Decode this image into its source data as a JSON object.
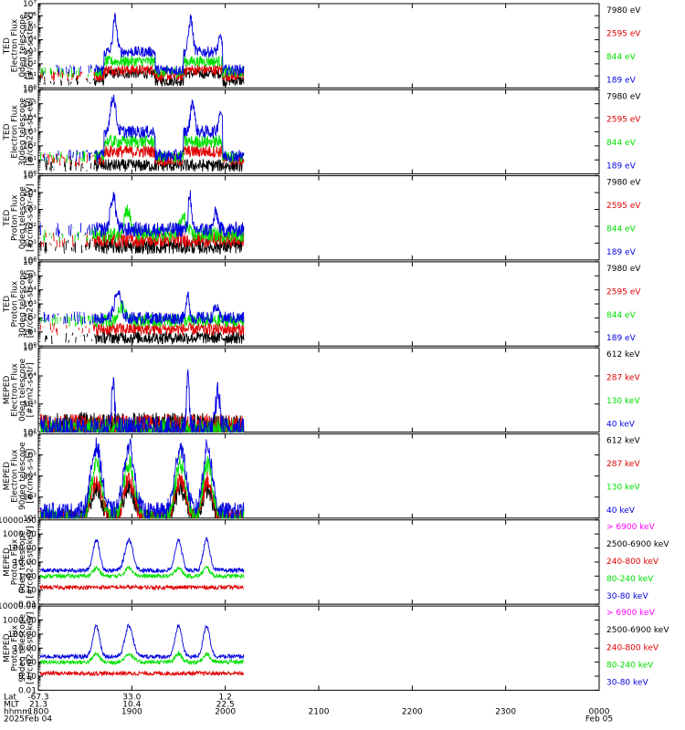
{
  "colors": {
    "black": "#000000",
    "red": "#e00000",
    "green": "#00e000",
    "blue": "#0000e0",
    "magenta": "#ff00ff"
  },
  "chart_data": [
    {
      "type": "line",
      "ylabel": [
        "TED",
        "Electron Flux",
        "0deg telescope",
        "[#/cm2-s-str-eV]"
      ],
      "scale": "log",
      "yticks": [
        "10⁰",
        "10¹",
        "10²",
        "10³",
        "10⁴",
        "10⁵",
        "10⁶",
        "10⁷"
      ],
      "ylim": [
        0,
        7
      ],
      "series": [
        {
          "name": "7980 eV",
          "color": "black"
        },
        {
          "name": "2595 eV",
          "color": "red"
        },
        {
          "name": "844 eV",
          "color": "green"
        },
        {
          "name": "189 eV",
          "color": "blue"
        }
      ],
      "profile": "ted_e0"
    },
    {
      "type": "line",
      "ylabel": [
        "TED",
        "Electron Flux",
        "30deg telescope",
        "[#/cm2-s-str-eV]"
      ],
      "scale": "log",
      "yticks": [
        "10⁰",
        "10¹",
        "10²",
        "10³",
        "10⁴",
        "10⁵",
        "10⁶"
      ],
      "ylim": [
        0,
        6
      ],
      "series": [
        {
          "name": "7980 eV",
          "color": "black"
        },
        {
          "name": "2595 eV",
          "color": "red"
        },
        {
          "name": "844 eV",
          "color": "green"
        },
        {
          "name": "189 eV",
          "color": "blue"
        }
      ],
      "profile": "ted_e30"
    },
    {
      "type": "line",
      "ylabel": [
        "TED",
        "Proton Flux",
        "0deg telescope",
        "[#/cm2-s-str-eV]"
      ],
      "scale": "log",
      "yticks": [
        "10⁰",
        "10¹",
        "10²",
        "10³",
        "10⁴",
        "10⁵"
      ],
      "ylim": [
        0,
        5
      ],
      "series": [
        {
          "name": "7980 eV",
          "color": "black"
        },
        {
          "name": "2595 eV",
          "color": "red"
        },
        {
          "name": "844 eV",
          "color": "green"
        },
        {
          "name": "189 eV",
          "color": "blue"
        }
      ],
      "profile": "ted_p0"
    },
    {
      "type": "line",
      "ylabel": [
        "TED",
        "Proton Flux",
        "30deg telescope",
        "[#/cm2-s-str-eV]"
      ],
      "scale": "log",
      "yticks": [
        "10⁰",
        "10¹",
        "10²",
        "10³",
        "10⁴",
        "10⁵",
        "10⁶"
      ],
      "ylim": [
        0,
        6
      ],
      "series": [
        {
          "name": "7980 eV",
          "color": "black"
        },
        {
          "name": "2595 eV",
          "color": "red"
        },
        {
          "name": "844 eV",
          "color": "green"
        },
        {
          "name": "189 eV",
          "color": "blue"
        }
      ],
      "profile": "ted_p30"
    },
    {
      "type": "line",
      "ylabel": [
        "MEPED",
        "Electron Flux",
        "0deg telescope",
        "[#/cm2-s-str]"
      ],
      "scale": "log",
      "yticks": [
        "10²",
        "10³",
        "10⁴",
        "10⁵"
      ],
      "ylim": [
        2,
        5
      ],
      "series": [
        {
          "name": "612 keV",
          "color": "black"
        },
        {
          "name": "287 keV",
          "color": "red"
        },
        {
          "name": "130 keV",
          "color": "green"
        },
        {
          "name": "40 keV",
          "color": "blue"
        }
      ],
      "profile": "mep_e0"
    },
    {
      "type": "line",
      "ylabel": [
        "MEPED",
        "Electron Flux",
        "90deg telescope",
        "[#/cm2-s-str]"
      ],
      "scale": "log",
      "yticks": [
        "10²",
        "10³",
        "10⁴",
        "10⁵",
        "10⁶"
      ],
      "ylim": [
        2,
        6
      ],
      "series": [
        {
          "name": "612 keV",
          "color": "black"
        },
        {
          "name": "287 keV",
          "color": "red"
        },
        {
          "name": "130 keV",
          "color": "green"
        },
        {
          "name": "40 keV",
          "color": "blue"
        }
      ],
      "profile": "mep_e90"
    },
    {
      "type": "line",
      "ylabel": [
        "MEPED",
        "Proton Flux",
        "0deg telescope",
        "[#/cm2-s-str-keV]"
      ],
      "scale": "log",
      "yticks": [
        "0.01",
        "0.10",
        "1.00",
        "10.00",
        "100.00",
        "1000.00",
        "10000.00"
      ],
      "ylim": [
        -2,
        4
      ],
      "series": [
        {
          "name": "> 6900 keV",
          "color": "magenta"
        },
        {
          "name": "2500-6900 keV",
          "color": "black"
        },
        {
          "name": "240-800 keV",
          "color": "red"
        },
        {
          "name": "80-240 keV",
          "color": "green"
        },
        {
          "name": "30-80 keV",
          "color": "blue"
        }
      ],
      "profile": "mep_p0"
    },
    {
      "type": "line",
      "ylabel": [
        "MEPED",
        "Proton Flux",
        "90deg telescope",
        "[#/cm2-s-str-keV]"
      ],
      "scale": "log",
      "yticks": [
        "0.01",
        "0.10",
        "1.00",
        "10.00",
        "100.00",
        "1000.00",
        "10000.00"
      ],
      "ylim": [
        -2,
        4
      ],
      "series": [
        {
          "name": "> 6900 keV",
          "color": "magenta"
        },
        {
          "name": "2500-6900 keV",
          "color": "black"
        },
        {
          "name": "240-800 keV",
          "color": "red"
        },
        {
          "name": "80-240 keV",
          "color": "green"
        },
        {
          "name": "30-80 keV",
          "color": "blue"
        }
      ],
      "profile": "mep_p90"
    }
  ],
  "xaxis": {
    "row_labels": [
      "Lat",
      "MLT",
      "hhmm",
      "2025"
    ],
    "ticks": [
      {
        "t": 0,
        "hhmm": "1800",
        "date": "Feb 04"
      },
      {
        "t": 1,
        "hhmm": "1900"
      },
      {
        "t": 2,
        "hhmm": "2000"
      },
      {
        "t": 3,
        "hhmm": "2100"
      },
      {
        "t": 4,
        "hhmm": "2200"
      },
      {
        "t": 5,
        "hhmm": "2300"
      },
      {
        "t": 6,
        "hhmm": "0000",
        "date": "Feb 05"
      }
    ],
    "orbit": [
      {
        "t": 0,
        "lat": "-67.3",
        "mlt": "21.3"
      },
      {
        "t": 1,
        "lat": "33.0",
        "mlt": "10.4"
      },
      {
        "t": 2,
        "lat": "1.2",
        "mlt": "22.5"
      }
    ],
    "xlim": [
      0,
      6
    ]
  }
}
